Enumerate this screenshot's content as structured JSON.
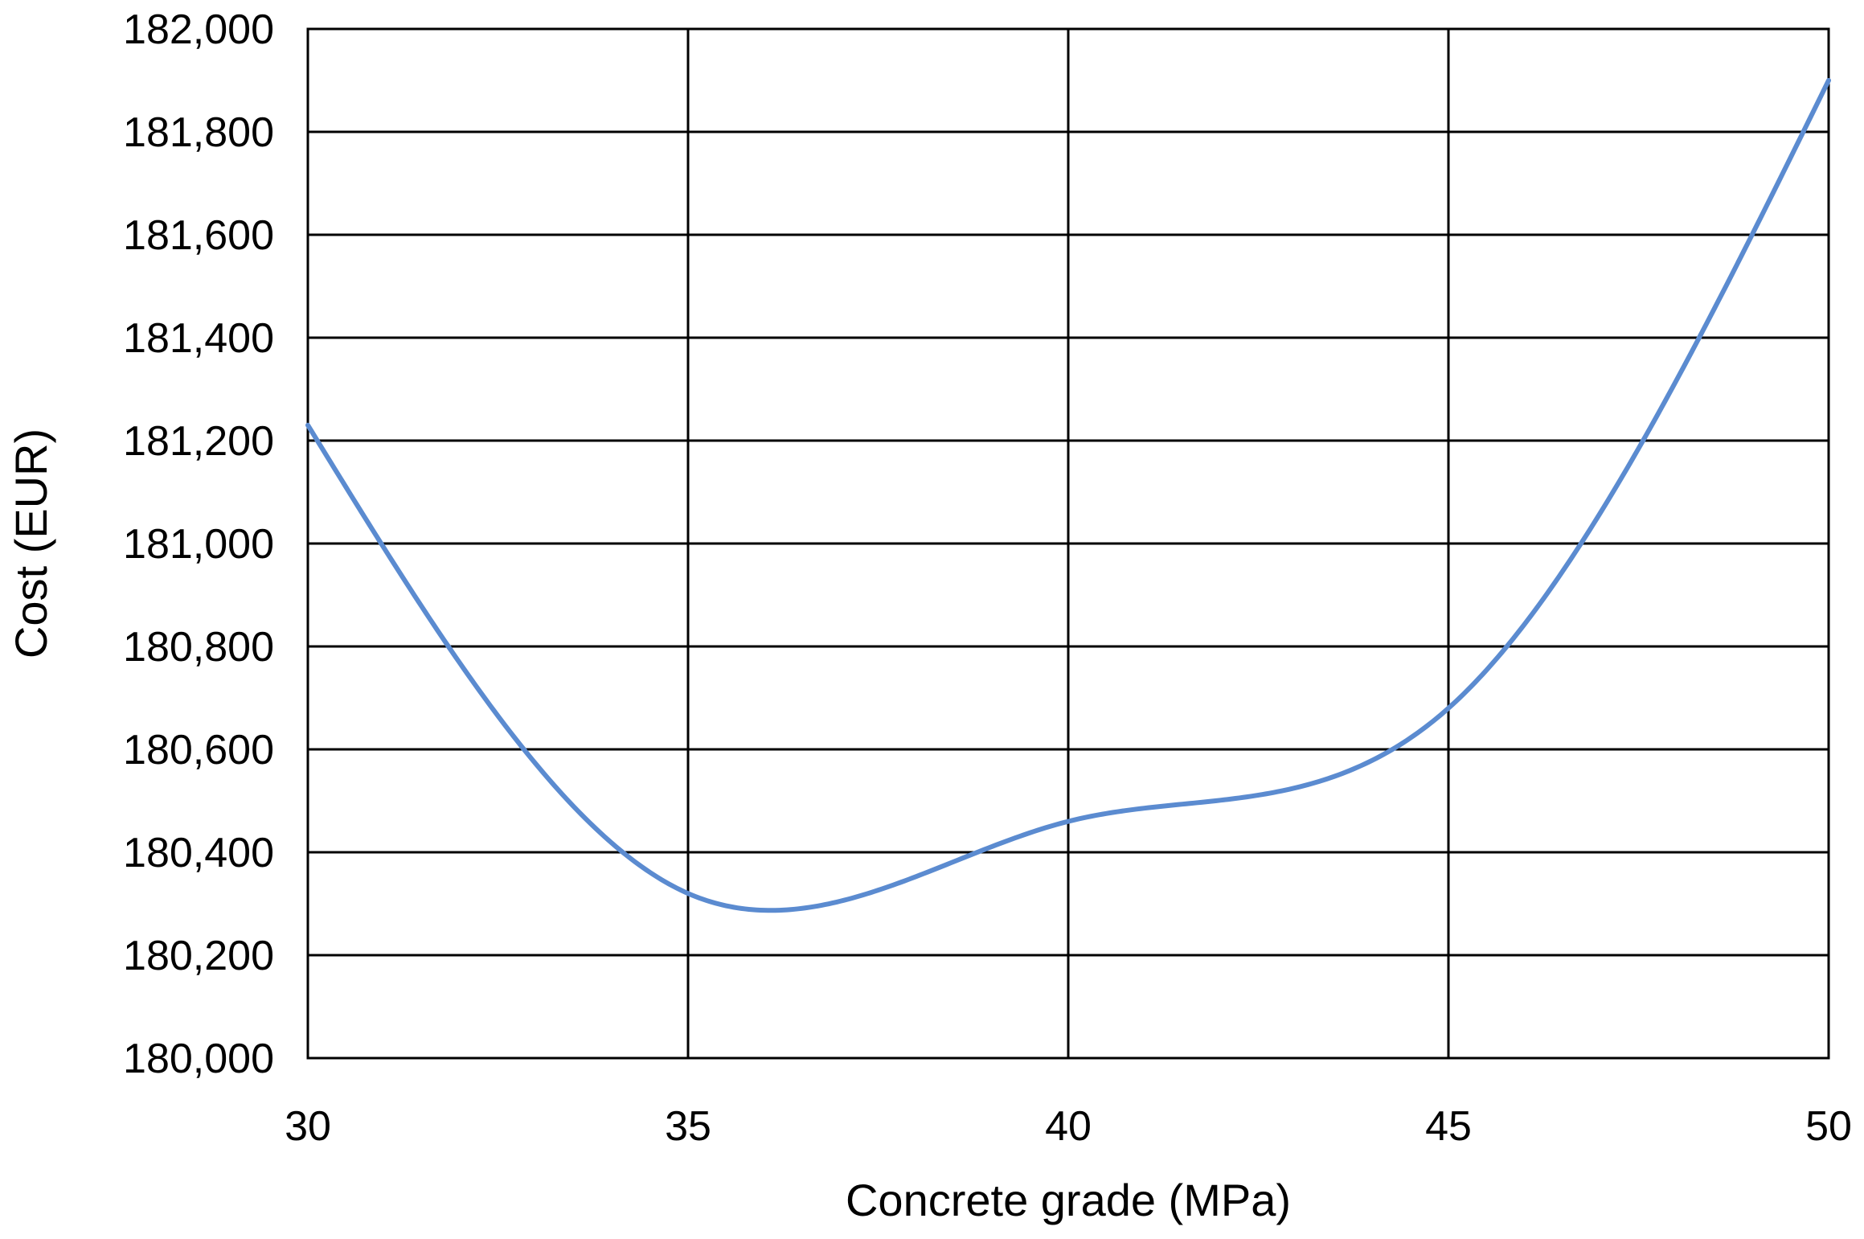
{
  "chart_data": {
    "type": "line",
    "xlabel": "Concrete grade (MPa)",
    "ylabel": "Cost (EUR)",
    "xlim": [
      30,
      50
    ],
    "ylim": [
      180000,
      182000
    ],
    "x_ticks": [
      30,
      35,
      40,
      45,
      50
    ],
    "y_ticks": [
      180000,
      180200,
      180400,
      180600,
      180800,
      181000,
      181200,
      181400,
      181600,
      181800,
      182000
    ],
    "x_tick_labels": [
      "30",
      "35",
      "40",
      "45",
      "50"
    ],
    "y_tick_labels": [
      "180,000",
      "180,200",
      "180,400",
      "180,600",
      "180,800",
      "181,000",
      "181,200",
      "181,400",
      "181,600",
      "181,800",
      "182,000"
    ],
    "grid": true,
    "series": [
      {
        "color": "#5B8BD0",
        "smooth": true,
        "x": [
          30,
          35,
          40,
          45,
          50
        ],
        "y": [
          181230,
          180320,
          180460,
          180680,
          181900
        ]
      }
    ]
  }
}
